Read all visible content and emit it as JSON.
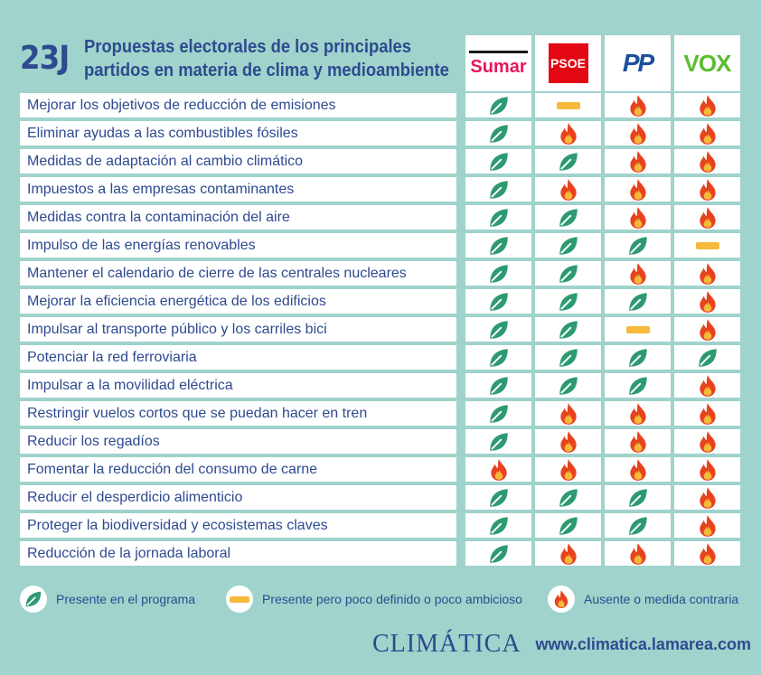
{
  "header": {
    "tag": "23J",
    "title_line1": "Propuestas electorales de los principales",
    "title_line2": "partidos en materia de clima y medioambiente"
  },
  "parties": [
    "Sumar",
    "PSOE",
    "PP",
    "VOX"
  ],
  "party_colors": {
    "Sumar": "#e6175c",
    "PSOE": "#e30613",
    "PP": "#1d4f9c",
    "VOX": "#5bbd2e"
  },
  "status_icons": {
    "present": "leaf-icon",
    "partial": "dash-icon",
    "absent": "fire-icon"
  },
  "rows": [
    {
      "label": "Mejorar los objetivos de reducción de emisiones",
      "values": [
        "present",
        "partial",
        "absent",
        "absent"
      ]
    },
    {
      "label": "Eliminar ayudas a las combustibles fósiles",
      "values": [
        "present",
        "absent",
        "absent",
        "absent"
      ]
    },
    {
      "label": "Medidas de adaptación al cambio climático",
      "values": [
        "present",
        "present",
        "absent",
        "absent"
      ]
    },
    {
      "label": "Impuestos a las empresas contaminantes",
      "values": [
        "present",
        "absent",
        "absent",
        "absent"
      ]
    },
    {
      "label": "Medidas contra la contaminación del aire",
      "values": [
        "present",
        "present",
        "absent",
        "absent"
      ]
    },
    {
      "label": "Impulso de las energías renovables",
      "values": [
        "present",
        "present",
        "present",
        "partial"
      ]
    },
    {
      "label": "Mantener el calendario de cierre de las centrales nucleares",
      "values": [
        "present",
        "present",
        "absent",
        "absent"
      ]
    },
    {
      "label": "Mejorar la eficiencia energética de los edificios",
      "values": [
        "present",
        "present",
        "present",
        "absent"
      ]
    },
    {
      "label": "Impulsar al transporte público y los carriles bici",
      "values": [
        "present",
        "present",
        "partial",
        "absent"
      ]
    },
    {
      "label": "Potenciar la red ferroviaria",
      "values": [
        "present",
        "present",
        "present",
        "present"
      ]
    },
    {
      "label": "Impulsar a la movilidad eléctrica",
      "values": [
        "present",
        "present",
        "present",
        "absent"
      ]
    },
    {
      "label": "Restringir vuelos cortos que se puedan hacer en tren",
      "values": [
        "present",
        "absent",
        "absent",
        "absent"
      ]
    },
    {
      "label": "Reducir los regadíos",
      "values": [
        "present",
        "absent",
        "absent",
        "absent"
      ]
    },
    {
      "label": "Fomentar la reducción del consumo de carne",
      "values": [
        "absent",
        "absent",
        "absent",
        "absent"
      ]
    },
    {
      "label": "Reducir el desperdicio alimenticio",
      "values": [
        "present",
        "present",
        "present",
        "absent"
      ]
    },
    {
      "label": "Proteger la biodiversidad y ecosistemas claves",
      "values": [
        "present",
        "present",
        "present",
        "absent"
      ]
    },
    {
      "label": "Reducción de la jornada laboral",
      "values": [
        "present",
        "absent",
        "absent",
        "absent"
      ]
    }
  ],
  "legend": {
    "present": "Presente en el programa",
    "partial": "Presente pero poco definido o poco ambicioso",
    "absent": "Ausente o medida contraria"
  },
  "footer": {
    "brand": "CLIMÁTICA",
    "url": "www.climatica.lamarea.com"
  }
}
